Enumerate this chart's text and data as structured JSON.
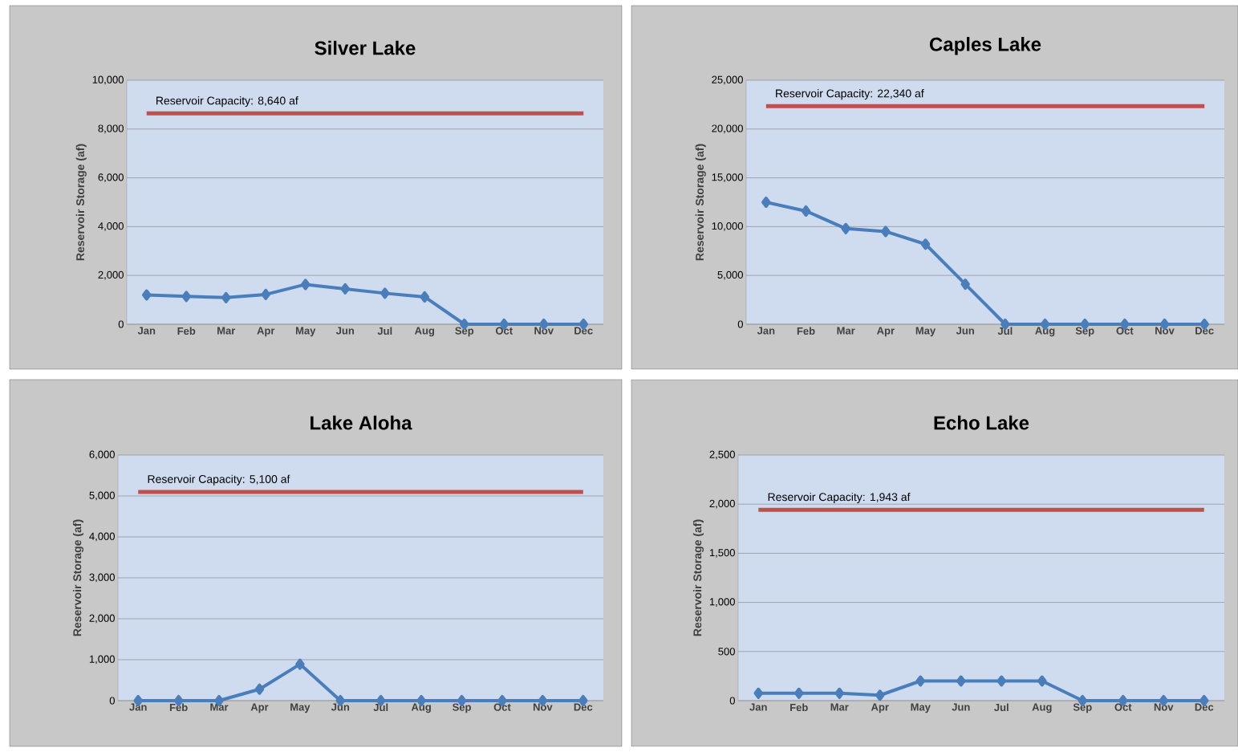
{
  "chart_data": [
    {
      "type": "line",
      "title": "Silver Lake",
      "ylabel": "Reservoir Storage (af)",
      "categories": [
        "Jan",
        "Feb",
        "Mar",
        "Apr",
        "May",
        "Jun",
        "Jul",
        "Aug",
        "Sep",
        "Oct",
        "Nov",
        "Dec"
      ],
      "series": [
        {
          "color": "#4a7ebb",
          "values": [
            1200,
            1140,
            1090,
            1220,
            1630,
            1450,
            1270,
            1120,
            0,
            0,
            0,
            0
          ]
        }
      ],
      "ylim": [
        0,
        10000
      ],
      "yticks": [
        {
          "value": 0,
          "label": "0"
        },
        {
          "value": 2000,
          "label": "2,000"
        },
        {
          "value": 4000,
          "label": "4,000"
        },
        {
          "value": 6000,
          "label": "6,000"
        },
        {
          "value": 8000,
          "label": "8,000"
        },
        {
          "value": 10000,
          "label": "10,000"
        }
      ],
      "ref_lines": [
        {
          "axis": "y",
          "value": 8640,
          "label": "Reservoir Capacity: 8,640 af",
          "color": "#c0504d"
        }
      ],
      "grid": "y",
      "marker": "diamond",
      "line_style": "solid"
    },
    {
      "type": "line",
      "title": "Caples Lake",
      "ylabel": "Reservoir Storage (af)",
      "categories": [
        "Jan",
        "Feb",
        "Mar",
        "Apr",
        "May",
        "Jun",
        "Jul",
        "Aug",
        "Sep",
        "Oct",
        "Nov",
        "Dec"
      ],
      "series": [
        {
          "color": "#4a7ebb",
          "values": [
            12500,
            11600,
            9800,
            9500,
            8200,
            4100,
            0,
            0,
            0,
            0,
            0,
            0
          ]
        }
      ],
      "ylim": [
        0,
        25000
      ],
      "yticks": [
        {
          "value": 0,
          "label": "0"
        },
        {
          "value": 5000,
          "label": "5,000"
        },
        {
          "value": 10000,
          "label": "10,000"
        },
        {
          "value": 15000,
          "label": "15,000"
        },
        {
          "value": 20000,
          "label": "20,000"
        },
        {
          "value": 25000,
          "label": "25,000"
        }
      ],
      "ref_lines": [
        {
          "axis": "y",
          "value": 22340,
          "label": "Reservoir Capacity: 22,340 af",
          "color": "#c0504d"
        }
      ],
      "grid": "y",
      "marker": "diamond",
      "line_style": "solid"
    },
    {
      "type": "line",
      "title": "Lake Aloha",
      "ylabel": "Reservoir Storage (af)",
      "categories": [
        "Jan",
        "Feb",
        "Mar",
        "Apr",
        "May",
        "Jun",
        "Jul",
        "Aug",
        "Sep",
        "Oct",
        "Nov",
        "Dec"
      ],
      "series": [
        {
          "color": "#4a7ebb",
          "values": [
            0,
            0,
            0,
            280,
            890,
            0,
            0,
            0,
            0,
            0,
            0,
            0
          ]
        }
      ],
      "ylim": [
        0,
        6000
      ],
      "yticks": [
        {
          "value": 0,
          "label": "0"
        },
        {
          "value": 1000,
          "label": "1,000"
        },
        {
          "value": 2000,
          "label": "2,000"
        },
        {
          "value": 3000,
          "label": "3,000"
        },
        {
          "value": 4000,
          "label": "4,000"
        },
        {
          "value": 5000,
          "label": "5,000"
        },
        {
          "value": 6000,
          "label": "6,000"
        }
      ],
      "ref_lines": [
        {
          "axis": "y",
          "value": 5100,
          "label": "Reservoir Capacity: 5,100 af",
          "color": "#c0504d"
        }
      ],
      "grid": "y",
      "marker": "diamond",
      "line_style": "solid"
    },
    {
      "type": "line",
      "title": "Echo Lake",
      "ylabel": "Reservoir Storage (af)",
      "categories": [
        "Jan",
        "Feb",
        "Mar",
        "Apr",
        "May",
        "Jun",
        "Jul",
        "Aug",
        "Sep",
        "Oct",
        "Nov",
        "Dec"
      ],
      "series": [
        {
          "color": "#4a7ebb",
          "values": [
            75,
            75,
            75,
            55,
            200,
            200,
            200,
            200,
            0,
            0,
            0,
            0
          ]
        }
      ],
      "ylim": [
        0,
        2500
      ],
      "yticks": [
        {
          "value": 0,
          "label": "0"
        },
        {
          "value": 500,
          "label": "500"
        },
        {
          "value": 1000,
          "label": "1,000"
        },
        {
          "value": 1500,
          "label": "1,500"
        },
        {
          "value": 2000,
          "label": "2,000"
        },
        {
          "value": 2500,
          "label": "2,500"
        }
      ],
      "ref_lines": [
        {
          "axis": "y",
          "value": 1943,
          "label": "Reservoir Capacity: 1,943 af",
          "color": "#c0504d"
        }
      ],
      "grid": "y",
      "marker": "diamond",
      "line_style": "solid"
    }
  ]
}
